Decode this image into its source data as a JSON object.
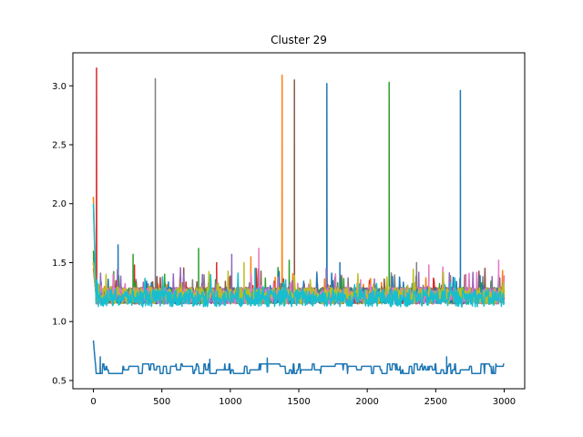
{
  "chart_data": {
    "type": "line",
    "title": "Cluster 29",
    "xlabel": "",
    "ylabel": "",
    "xlim": [
      -150,
      3150
    ],
    "ylim": [
      0.43,
      3.28
    ],
    "xticks": [
      0,
      500,
      1000,
      1500,
      2000,
      2500,
      3000
    ],
    "yticks": [
      0.5,
      1.0,
      1.5,
      2.0,
      2.5,
      3.0
    ],
    "xtick_labels": [
      "0",
      "500",
      "1000",
      "1500",
      "2000",
      "2500",
      "3000"
    ],
    "ytick_labels": [
      "0.5",
      "1.0",
      "1.5",
      "2.0",
      "2.5",
      "3.0"
    ],
    "grid": false,
    "legend": "none",
    "x_count": 3000,
    "series": [
      {
        "color": "#d62728",
        "start": 1.45,
        "base": 1.22,
        "noise": 0.07,
        "spikes": [
          [
            23,
            3.15
          ],
          [
            300,
            1.48
          ],
          [
            900,
            1.5
          ]
        ]
      },
      {
        "color": "#7f7f7f",
        "start": 1.55,
        "base": 1.22,
        "noise": 0.07,
        "spikes": [
          [
            452,
            3.06
          ],
          [
            2360,
            1.5
          ]
        ]
      },
      {
        "color": "#ff7f0e",
        "start": 2.06,
        "base": 1.22,
        "noise": 0.07,
        "spikes": [
          [
            1378,
            3.09
          ],
          [
            1150,
            1.55
          ]
        ]
      },
      {
        "color": "#8c564b",
        "start": 1.5,
        "base": 1.22,
        "noise": 0.07,
        "spikes": [
          [
            1468,
            3.05
          ]
        ]
      },
      {
        "color": "#2ca02c",
        "start": 1.6,
        "base": 1.22,
        "noise": 0.07,
        "spikes": [
          [
            2160,
            3.03
          ],
          [
            768,
            1.62
          ],
          [
            290,
            1.57
          ],
          [
            1430,
            1.52
          ]
        ]
      },
      {
        "color": "#1f77b4",
        "start": 1.5,
        "base": 1.22,
        "noise": 0.07,
        "spikes": [
          [
            1705,
            3.02
          ],
          [
            2680,
            2.96
          ],
          [
            180,
            1.65
          ],
          [
            1800,
            1.5
          ]
        ]
      },
      {
        "color": "#9467bd",
        "start": 1.5,
        "base": 1.22,
        "noise": 0.07,
        "spikes": [
          [
            1010,
            1.57
          ],
          [
            1700,
            1.45
          ]
        ]
      },
      {
        "color": "#e377c2",
        "start": 1.5,
        "base": 1.22,
        "noise": 0.07,
        "spikes": [
          [
            1208,
            1.62
          ],
          [
            2960,
            1.52
          ],
          [
            2450,
            1.48
          ]
        ]
      },
      {
        "color": "#bcbd22",
        "start": 1.5,
        "base": 1.22,
        "noise": 0.07,
        "spikes": [
          [
            1100,
            1.5
          ]
        ]
      },
      {
        "color": "#17becf",
        "start": 2.0,
        "base": 1.2,
        "noise": 0.075,
        "spikes": [
          [
            1180,
            1.45
          ]
        ]
      },
      {
        "color": "#1f77b4",
        "start": 0.84,
        "base": 0.57,
        "noise": 0.0,
        "step": true,
        "levels": [
          0.56,
          0.59,
          0.62,
          0.64
        ],
        "spikes": [
          [
            50,
            0.7
          ],
          [
            1270,
            0.69
          ],
          [
            2580,
            0.7
          ],
          [
            850,
            0.68
          ]
        ]
      }
    ]
  }
}
